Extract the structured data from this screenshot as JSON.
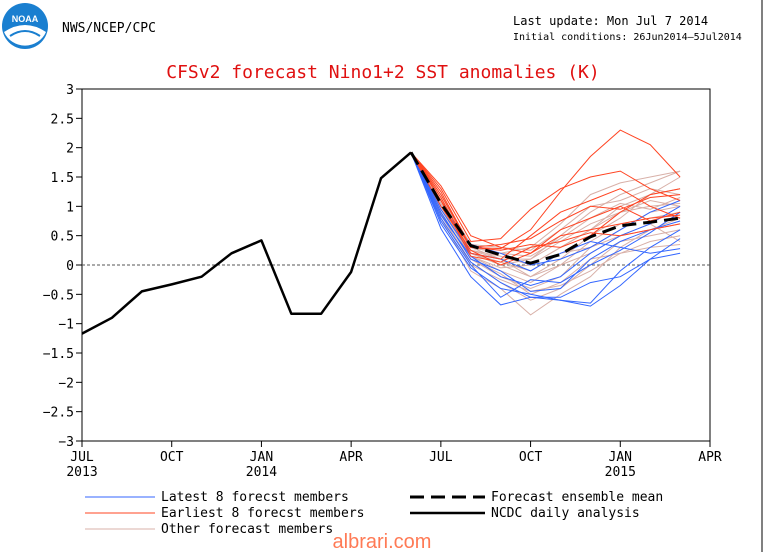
{
  "header": {
    "agency": "NWS/NCEP/CPC",
    "logo_text": "NOAA",
    "last_update": "Last update: Mon Jul 7 2014",
    "initial_conditions": "Initial conditions: 26Jun2014–5Jul2014"
  },
  "watermark": "albrari.com",
  "colors": {
    "title": "#e01010",
    "latest": "#3366ff",
    "earliest": "#ff4422",
    "other": "#d8b0a8",
    "ensemble_mean": "#000000",
    "observed": "#000000",
    "logo_blue": "#1a7fd0"
  },
  "chart_data": {
    "type": "line",
    "title": "CFSv2 forecast Nino1+2 SST anomalies (K)",
    "xlabel": "",
    "ylabel": "",
    "ylim": [
      -3,
      3
    ],
    "x_range": [
      "2013-07",
      "2015-04"
    ],
    "yticks": [
      3,
      2.5,
      2,
      1.5,
      1,
      0.5,
      0,
      -0.5,
      -1,
      -1.5,
      -2,
      -2.5,
      -3
    ],
    "ytick_labels": [
      "3",
      "2.5",
      "2",
      "1.5",
      "1",
      "0.5",
      "0",
      "−0.5",
      "−1",
      "−1.5",
      "−2",
      "−2.5",
      "−3"
    ],
    "xticks": [
      {
        "month": "2013-07",
        "label": "JUL",
        "year": "2013"
      },
      {
        "month": "2013-10",
        "label": "OCT",
        "year": ""
      },
      {
        "month": "2014-01",
        "label": "JAN",
        "year": "2014"
      },
      {
        "month": "2014-04",
        "label": "APR",
        "year": ""
      },
      {
        "month": "2014-07",
        "label": "JUL",
        "year": ""
      },
      {
        "month": "2014-10",
        "label": "OCT",
        "year": ""
      },
      {
        "month": "2015-01",
        "label": "JAN",
        "year": "2015"
      },
      {
        "month": "2015-04",
        "label": "APR",
        "year": ""
      }
    ],
    "zero_line": true,
    "grid": false,
    "legend_position": "bottom",
    "legend": {
      "latest": "Latest 8 forecst members",
      "earliest": "Earliest 8 forecst members",
      "other": "Other forecast members",
      "ensemble_mean": "Forecast ensemble mean",
      "observed": "NCDC daily analysis"
    },
    "observed": {
      "months": [
        "2013-07",
        "2013-08",
        "2013-09",
        "2013-10",
        "2013-11",
        "2013-12",
        "2014-01",
        "2014-02",
        "2014-03",
        "2014-04",
        "2014-05",
        "2014-06"
      ],
      "values": [
        -1.17,
        -0.9,
        -0.45,
        -0.33,
        -0.2,
        0.2,
        0.42,
        -0.83,
        -0.83,
        -0.12,
        1.48,
        1.92
      ]
    },
    "ensemble_mean": {
      "months": [
        "2014-06",
        "2014-07",
        "2014-08",
        "2014-09",
        "2014-10",
        "2014-11",
        "2014-12",
        "2015-01",
        "2015-02",
        "2015-03"
      ],
      "values": [
        1.92,
        1.05,
        0.33,
        0.17,
        0.03,
        0.18,
        0.48,
        0.67,
        0.73,
        0.8
      ]
    },
    "members_months": [
      "2014-06",
      "2014-07",
      "2014-08",
      "2014-09",
      "2014-10",
      "2014-11",
      "2014-12",
      "2015-01",
      "2015-02",
      "2015-03"
    ],
    "members_latest": [
      [
        1.92,
        0.62,
        -0.2,
        -0.68,
        -0.55,
        -0.6,
        -0.65,
        -0.1,
        0.3,
        0.6
      ],
      [
        1.92,
        0.8,
        0.05,
        -0.3,
        -0.55,
        -0.55,
        -0.3,
        -0.2,
        0.1,
        0.2
      ],
      [
        1.92,
        0.7,
        -0.05,
        -0.4,
        -0.5,
        -0.6,
        -0.7,
        -0.35,
        0.1,
        0.45
      ],
      [
        1.92,
        0.95,
        0.2,
        0.1,
        -0.1,
        0.2,
        0.4,
        0.3,
        0.2,
        0.28
      ],
      [
        1.92,
        0.9,
        0.1,
        -0.1,
        -0.45,
        -0.4,
        0.1,
        0.4,
        0.6,
        0.75
      ],
      [
        1.92,
        1.0,
        0.35,
        0.2,
        0.0,
        0.1,
        0.3,
        0.6,
        0.9,
        1.1
      ],
      [
        1.92,
        0.85,
        0.15,
        -0.2,
        -0.35,
        -0.2,
        0.2,
        0.5,
        0.7,
        1.0
      ],
      [
        1.92,
        0.75,
        0.0,
        -0.55,
        -0.25,
        -0.3,
        0.0,
        0.25,
        0.55,
        0.9
      ]
    ],
    "members_earliest": [
      [
        1.92,
        1.2,
        0.3,
        0.28,
        0.6,
        1.25,
        1.85,
        2.3,
        2.05,
        1.5
      ],
      [
        1.92,
        1.3,
        0.4,
        0.45,
        0.95,
        1.3,
        1.5,
        1.6,
        1.3,
        1.1
      ],
      [
        1.92,
        1.15,
        0.2,
        0.1,
        0.5,
        0.9,
        1.1,
        1.3,
        1.0,
        0.8
      ],
      [
        1.92,
        1.25,
        0.3,
        0.25,
        0.35,
        0.3,
        0.5,
        0.9,
        1.2,
        1.3
      ],
      [
        1.92,
        1.1,
        0.3,
        0.35,
        0.45,
        0.75,
        1.0,
        0.95,
        1.15,
        1.2
      ],
      [
        1.92,
        1.0,
        0.25,
        0.0,
        0.2,
        0.6,
        0.8,
        1.0,
        0.75,
        0.9
      ],
      [
        1.92,
        1.35,
        0.5,
        0.3,
        0.2,
        0.5,
        0.6,
        0.7,
        0.8,
        0.85
      ],
      [
        1.92,
        1.1,
        0.15,
        0.05,
        0.3,
        0.4,
        0.55,
        0.5,
        0.6,
        0.7
      ]
    ],
    "members_other": [
      [
        1.92,
        1.0,
        0.2,
        0.0,
        -0.2,
        0.1,
        0.5,
        0.8,
        1.2,
        1.5
      ],
      [
        1.92,
        0.9,
        0.1,
        -0.2,
        -0.4,
        -0.2,
        0.3,
        0.6,
        0.9,
        1.0
      ],
      [
        1.92,
        1.1,
        0.3,
        0.1,
        0.1,
        0.5,
        0.9,
        1.2,
        1.4,
        1.6
      ],
      [
        1.92,
        0.8,
        -0.1,
        -0.4,
        -0.85,
        -0.5,
        -0.2,
        0.3,
        0.6,
        0.8
      ],
      [
        1.92,
        1.05,
        0.25,
        0.15,
        0.0,
        0.3,
        0.6,
        0.9,
        1.1,
        1.0
      ],
      [
        1.92,
        0.95,
        0.15,
        -0.1,
        -0.3,
        0.0,
        0.4,
        0.7,
        0.8,
        0.9
      ],
      [
        1.92,
        1.2,
        0.35,
        0.3,
        0.25,
        0.6,
        1.0,
        1.1,
        1.3,
        1.2
      ],
      [
        1.92,
        0.85,
        0.05,
        -0.3,
        -0.6,
        -0.4,
        0.0,
        0.4,
        0.5,
        0.6
      ],
      [
        1.92,
        1.0,
        0.2,
        0.05,
        -0.1,
        0.2,
        0.3,
        0.5,
        0.6,
        0.7
      ],
      [
        1.92,
        1.15,
        0.3,
        0.2,
        0.3,
        0.7,
        1.2,
        1.4,
        1.5,
        1.6
      ],
      [
        1.92,
        0.9,
        0.1,
        -0.15,
        -0.5,
        -0.3,
        0.1,
        0.2,
        0.4,
        0.5
      ],
      [
        1.92,
        1.05,
        0.2,
        0.0,
        0.1,
        0.4,
        0.7,
        0.9,
        1.0,
        1.05
      ],
      [
        1.92,
        0.95,
        0.25,
        0.1,
        -0.2,
        0.0,
        0.2,
        0.5,
        0.7,
        0.4
      ],
      [
        1.92,
        1.1,
        0.15,
        -0.05,
        0.0,
        0.3,
        0.6,
        1.0,
        1.2,
        1.3
      ],
      [
        1.92,
        0.88,
        0.0,
        -0.25,
        -0.45,
        -0.35,
        -0.1,
        0.2,
        0.3,
        0.35
      ],
      [
        1.92,
        1.0,
        0.3,
        0.2,
        0.15,
        0.45,
        0.8,
        1.05,
        0.95,
        1.15
      ]
    ]
  }
}
